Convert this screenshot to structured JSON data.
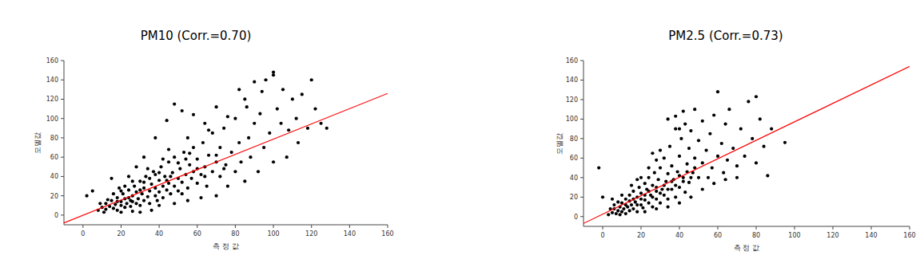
{
  "chart_data": [
    {
      "type": "scatter",
      "title": "PM10  (Corr.=0.70)",
      "x_label": "측 정 값",
      "y_label": "모델값",
      "xlim": [
        -10,
        160
      ],
      "ylim": [
        -10,
        160
      ],
      "xticks": [
        0,
        20,
        40,
        60,
        80,
        100,
        120,
        140,
        160
      ],
      "yticks": [
        0,
        20,
        40,
        60,
        80,
        100,
        120,
        140,
        160
      ],
      "series": [
        {
          "type": "scatter",
          "color": "#000000",
          "marker": "circle",
          "x": [
            8,
            10,
            12,
            12,
            14,
            15,
            16,
            17,
            18,
            18,
            20,
            20,
            21,
            22,
            22,
            23,
            24,
            25,
            25,
            26,
            27,
            28,
            28,
            29,
            30,
            30,
            31,
            32,
            32,
            33,
            34,
            35,
            35,
            36,
            37,
            38,
            38,
            39,
            40,
            40,
            41,
            42,
            42,
            43,
            44,
            45,
            45,
            46,
            47,
            48,
            48,
            50,
            50,
            51,
            52,
            53,
            54,
            55,
            56,
            57,
            58,
            58,
            60,
            60,
            62,
            63,
            64,
            65,
            66,
            68,
            68,
            70,
            72,
            72,
            74,
            75,
            76,
            78,
            80,
            80,
            82,
            83,
            85,
            85,
            87,
            88,
            90,
            90,
            92,
            93,
            95,
            96,
            98,
            100,
            100,
            102,
            104,
            105,
            107,
            108,
            110,
            112,
            113,
            115,
            118,
            120,
            122,
            125,
            128,
            100,
            94,
            86,
            76,
            64,
            44,
            38,
            32,
            28,
            24,
            5,
            2,
            15,
            48,
            52,
            58,
            70,
            40,
            48,
            55,
            62,
            70,
            36,
            26,
            30,
            20,
            45,
            55,
            82,
            66,
            34,
            42,
            26,
            19,
            16,
            13,
            11,
            9,
            20,
            24,
            30,
            35,
            40,
            44,
            50,
            52,
            56,
            60,
            18,
            22,
            26,
            32,
            38,
            46,
            54,
            64,
            70,
            74
          ],
          "values": [
            5,
            8,
            6,
            12,
            9,
            15,
            7,
            11,
            18,
            5,
            10,
            14,
            22,
            8,
            17,
            12,
            26,
            15,
            9,
            20,
            30,
            12,
            24,
            17,
            35,
            10,
            22,
            28,
            15,
            40,
            19,
            25,
            12,
            32,
            45,
            20,
            28,
            15,
            36,
            24,
            50,
            30,
            18,
            40,
            26,
            55,
            33,
            22,
            44,
            30,
            60,
            38,
            25,
            48,
            34,
            65,
            42,
            28,
            52,
            38,
            70,
            45,
            33,
            58,
            42,
            75,
            50,
            30,
            62,
            45,
            85,
            55,
            40,
            70,
            90,
            52,
            30,
            65,
            100,
            45,
            75,
            55,
            120,
            35,
            80,
            60,
            138,
            95,
            45,
            105,
            70,
            140,
            85,
            145,
            55,
            110,
            95,
            130,
            60,
            88,
            120,
            100,
            75,
            125,
            90,
            140,
            110,
            95,
            90,
            148,
            128,
            112,
            102,
            95,
            98,
            80,
            60,
            50,
            40,
            25,
            20,
            38,
            115,
            108,
            104,
            112,
            10,
            12,
            15,
            18,
            20,
            5,
            4,
            3,
            3,
            68,
            80,
            130,
            88,
            48,
            58,
            35,
            28,
            22,
            16,
            3,
            12,
            25,
            18,
            26,
            38,
            44,
            36,
            54,
            22,
            64,
            48,
            14,
            30,
            14,
            34,
            42,
            40,
            58,
            40,
            62,
            48
          ]
        },
        {
          "type": "line",
          "color": "#ff0000",
          "line_style": "solid",
          "x": [
            -10,
            160
          ],
          "values": [
            -8,
            126
          ]
        }
      ]
    },
    {
      "type": "scatter",
      "title": "PM2.5  (Corr.=0.73)",
      "x_label": "측 정 값",
      "y_label": "모델값",
      "xlim": [
        -10,
        160
      ],
      "ylim": [
        -10,
        160
      ],
      "xticks": [
        0,
        20,
        40,
        60,
        80,
        100,
        120,
        140,
        160
      ],
      "yticks": [
        0,
        20,
        40,
        60,
        80,
        100,
        120,
        140,
        160
      ],
      "series": [
        {
          "type": "scatter",
          "color": "#000000",
          "marker": "circle",
          "x": [
            3,
            5,
            6,
            7,
            8,
            9,
            10,
            10,
            11,
            12,
            12,
            13,
            14,
            14,
            15,
            16,
            16,
            17,
            18,
            18,
            19,
            20,
            20,
            21,
            22,
            22,
            23,
            24,
            24,
            25,
            26,
            26,
            27,
            28,
            28,
            29,
            30,
            30,
            31,
            32,
            32,
            33,
            34,
            34,
            35,
            36,
            36,
            37,
            38,
            38,
            39,
            40,
            40,
            41,
            42,
            43,
            43,
            44,
            45,
            45,
            46,
            47,
            48,
            48,
            50,
            50,
            52,
            52,
            54,
            55,
            56,
            57,
            58,
            60,
            60,
            62,
            63,
            64,
            65,
            66,
            68,
            70,
            72,
            74,
            76,
            78,
            80,
            80,
            82,
            84,
            86,
            88,
            95,
            -2,
            0,
            5,
            8,
            10,
            24,
            28,
            30,
            26,
            20,
            15,
            18,
            34,
            38,
            42,
            40,
            22,
            28,
            34,
            40,
            46,
            52,
            58,
            64,
            70,
            12,
            14,
            16,
            18,
            20,
            22,
            24,
            26,
            28,
            30,
            32,
            34,
            36,
            38,
            40,
            42,
            44,
            46,
            48,
            6,
            9,
            4
          ],
          "values": [
            2,
            4,
            8,
            3,
            6,
            10,
            5,
            14,
            8,
            3,
            18,
            10,
            6,
            22,
            12,
            8,
            26,
            15,
            5,
            20,
            30,
            12,
            24,
            9,
            34,
            17,
            28,
            14,
            40,
            22,
            10,
            32,
            45,
            18,
            26,
            38,
            14,
            50,
            28,
            22,
            60,
            36,
            18,
            44,
            72,
            28,
            52,
            38,
            20,
            90,
            46,
            30,
            62,
            80,
            40,
            25,
            95,
            54,
            35,
            70,
            88,
            45,
            60,
            110,
            40,
            78,
            55,
            98,
            68,
            40,
            85,
            50,
            104,
            62,
            128,
            75,
            45,
            95,
            58,
            110,
            70,
            52,
            90,
            62,
            118,
            80,
            123,
            55,
            100,
            72,
            42,
            90,
            76,
            50,
            20,
            18,
            15,
            22,
            50,
            58,
            68,
            65,
            40,
            32,
            38,
            100,
            103,
            108,
            90,
            5,
            8,
            10,
            14,
            20,
            28,
            34,
            38,
            40,
            12,
            16,
            18,
            12,
            18,
            22,
            26,
            20,
            30,
            24,
            32,
            28,
            36,
            32,
            42,
            36,
            46,
            40,
            50,
            12,
            2,
            8
          ]
        },
        {
          "type": "line",
          "color": "#ff0000",
          "line_style": "solid",
          "x": [
            -10,
            160
          ],
          "values": [
            -7,
            154
          ]
        }
      ]
    }
  ]
}
